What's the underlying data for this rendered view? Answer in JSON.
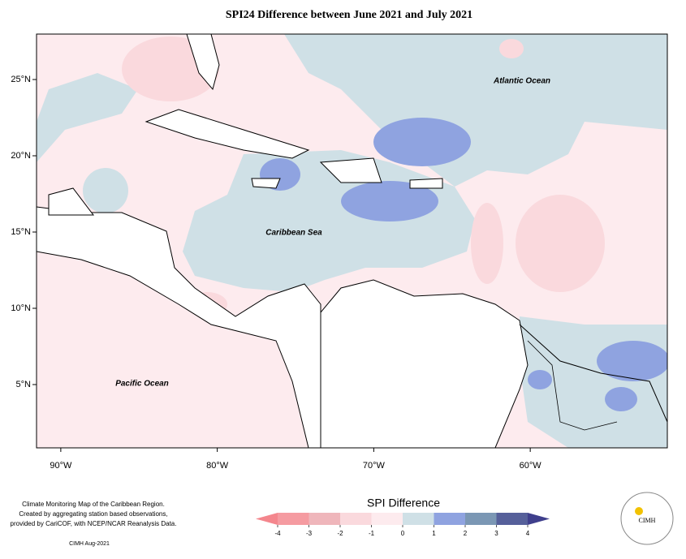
{
  "map": {
    "title": "SPI24 Difference between June 2021 and July 2021",
    "xlim": [
      -91.55,
      -51.24
    ],
    "ylim": [
      0.85,
      27.98
    ],
    "xticks": [
      {
        "value": -90,
        "label": "90°W"
      },
      {
        "value": -80,
        "label": "80°W"
      },
      {
        "value": -70,
        "label": "70°W"
      },
      {
        "value": -60,
        "label": "60°W"
      }
    ],
    "yticks": [
      {
        "value": 5,
        "label": "5°N"
      },
      {
        "value": 10,
        "label": "10°N"
      },
      {
        "value": 15,
        "label": "15°N"
      },
      {
        "value": 20,
        "label": "20°N"
      },
      {
        "value": 25,
        "label": "25°N"
      }
    ],
    "labels": [
      "Atlantic Ocean",
      "Caribbean Sea",
      "Pacific Ocean"
    ]
  },
  "credits": {
    "lines": [
      "Climate Monitoring Map of the Caribbean Region.",
      "Created by aggregating station based observations,",
      "provided by CariCOF, with NCEP/NCAR Reanalysis Data."
    ],
    "stamp": "CIMH Aug-2021"
  },
  "colorbar": {
    "title": "SPI Difference",
    "ticks": [
      -4,
      -3,
      -2,
      -1,
      0,
      1,
      2,
      3,
      4
    ],
    "colors": [
      "#f59ba1",
      "#efb6bb",
      "#fad9dd",
      "#fdebee",
      "#cfe0e6",
      "#8fa3e0",
      "#7b97b4",
      "#56609a"
    ],
    "under_color": "#f4868d",
    "over_color": "#3f3f8c"
  },
  "logo": {
    "text": "CIMH"
  }
}
